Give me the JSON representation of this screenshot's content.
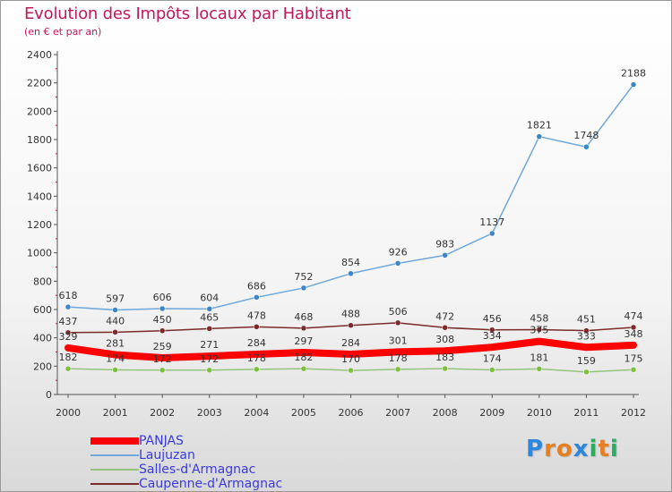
{
  "header": {
    "title": "Evolution des Impôts locaux par Habitant",
    "subtitle": "(en € et par an)"
  },
  "logo": {
    "letters": [
      "P",
      "r",
      "o",
      "x",
      "i",
      "t",
      "i"
    ],
    "colors": [
      "#2e86de",
      "#e67e22",
      "#e67e22",
      "#2e86de",
      "#27ae60",
      "#e67e22",
      "#27ae60"
    ]
  },
  "chart_data": {
    "type": "line",
    "title": "Evolution des Impôts locaux par Habitant",
    "subtitle": "(en € et par an)",
    "x": [
      2000,
      2001,
      2002,
      2003,
      2004,
      2005,
      2006,
      2007,
      2008,
      2009,
      2010,
      2011,
      2012
    ],
    "ylim": [
      0,
      2400
    ],
    "yticks": [
      0,
      200,
      400,
      600,
      800,
      1000,
      1200,
      1400,
      1600,
      1800,
      2000,
      2200,
      2400
    ],
    "grid": false,
    "legend_position": "bottom-left",
    "series": [
      {
        "name": "PANJAS",
        "color": "#ff0000",
        "values": [
          329,
          281,
          259,
          271,
          284,
          297,
          284,
          301,
          308,
          334,
          375,
          333,
          348
        ]
      },
      {
        "name": "Laujuzan",
        "color": "#6fa8dc",
        "marker": "#3d85c6",
        "values": [
          618,
          597,
          606,
          604,
          686,
          752,
          854,
          926,
          983,
          1137,
          1821,
          1748,
          2188
        ]
      },
      {
        "name": "Salles-d'Armagnac",
        "color": "#93c47d",
        "marker": "#7fbf3f",
        "values": [
          182,
          174,
          172,
          172,
          178,
          182,
          170,
          178,
          183,
          174,
          181,
          159,
          175
        ]
      },
      {
        "name": "Caupenne-d'Armagnac",
        "color": "#7b2a2a",
        "marker": "#7b2a2a",
        "values": [
          437,
          440,
          450,
          465,
          478,
          468,
          488,
          506,
          472,
          456,
          458,
          451,
          474
        ]
      }
    ]
  }
}
